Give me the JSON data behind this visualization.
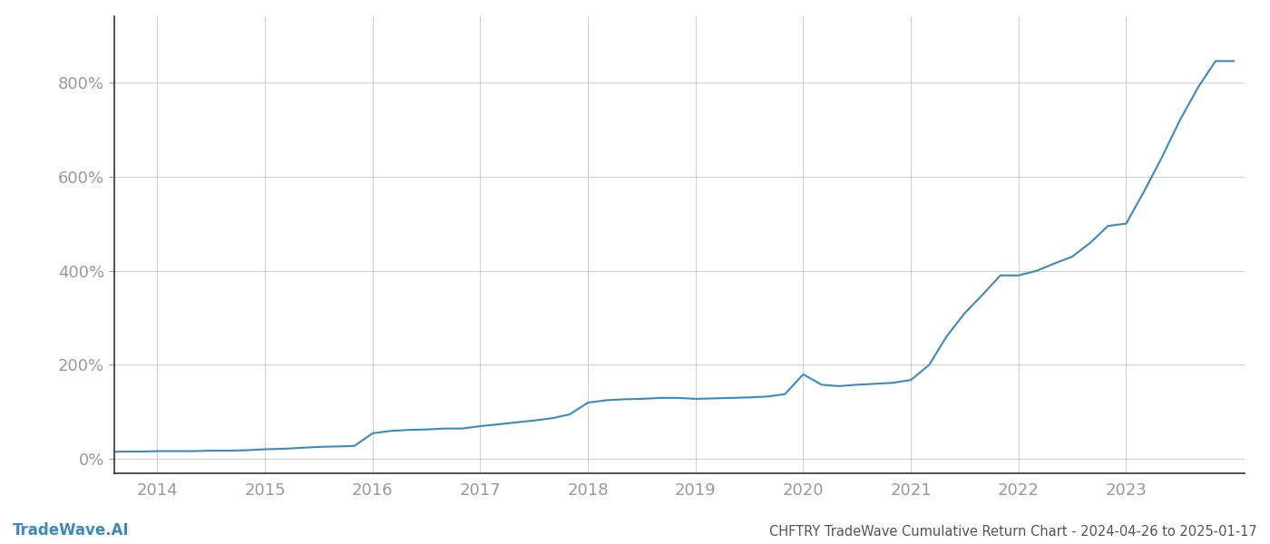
{
  "title": "CHFTRY TradeWave Cumulative Return Chart - 2024-04-26 to 2025-01-17",
  "watermark": "TradeWave.AI",
  "line_color": "#3a8abf",
  "background_color": "#ffffff",
  "grid_color": "#d0d0d0",
  "x_years": [
    2014,
    2015,
    2016,
    2017,
    2018,
    2019,
    2020,
    2021,
    2022,
    2023
  ],
  "x_data": [
    2013.5,
    2013.67,
    2013.83,
    2014.0,
    2014.17,
    2014.33,
    2014.5,
    2014.67,
    2014.83,
    2015.0,
    2015.17,
    2015.33,
    2015.5,
    2015.67,
    2015.83,
    2016.0,
    2016.17,
    2016.33,
    2016.5,
    2016.67,
    2016.83,
    2017.0,
    2017.17,
    2017.33,
    2017.5,
    2017.67,
    2017.83,
    2018.0,
    2018.17,
    2018.33,
    2018.5,
    2018.67,
    2018.83,
    2019.0,
    2019.17,
    2019.33,
    2019.5,
    2019.67,
    2019.83,
    2020.0,
    2020.17,
    2020.33,
    2020.5,
    2020.67,
    2020.83,
    2021.0,
    2021.17,
    2021.33,
    2021.5,
    2021.67,
    2021.83,
    2022.0,
    2022.17,
    2022.33,
    2022.5,
    2022.67,
    2022.83,
    2023.0,
    2023.17,
    2023.33,
    2023.5,
    2023.67,
    2023.83,
    2024.0
  ],
  "y_data": [
    15,
    16,
    16,
    17,
    17,
    17,
    18,
    18,
    19,
    21,
    22,
    24,
    26,
    27,
    28,
    55,
    60,
    62,
    63,
    65,
    65,
    70,
    74,
    78,
    82,
    87,
    95,
    120,
    125,
    127,
    128,
    130,
    130,
    128,
    129,
    130,
    131,
    133,
    138,
    180,
    158,
    155,
    158,
    160,
    162,
    168,
    200,
    260,
    310,
    350,
    390,
    390,
    400,
    415,
    430,
    460,
    495,
    500,
    570,
    640,
    720,
    790,
    845,
    845
  ],
  "yticks": [
    0,
    200,
    400,
    600,
    800
  ],
  "ylim": [
    -30,
    940
  ],
  "xlim": [
    2013.6,
    2024.1
  ],
  "title_fontsize": 10.5,
  "watermark_fontsize": 12,
  "tick_fontsize": 13,
  "tick_color": "#999999",
  "spine_color": "#333333",
  "left_spine_color": "#333333"
}
